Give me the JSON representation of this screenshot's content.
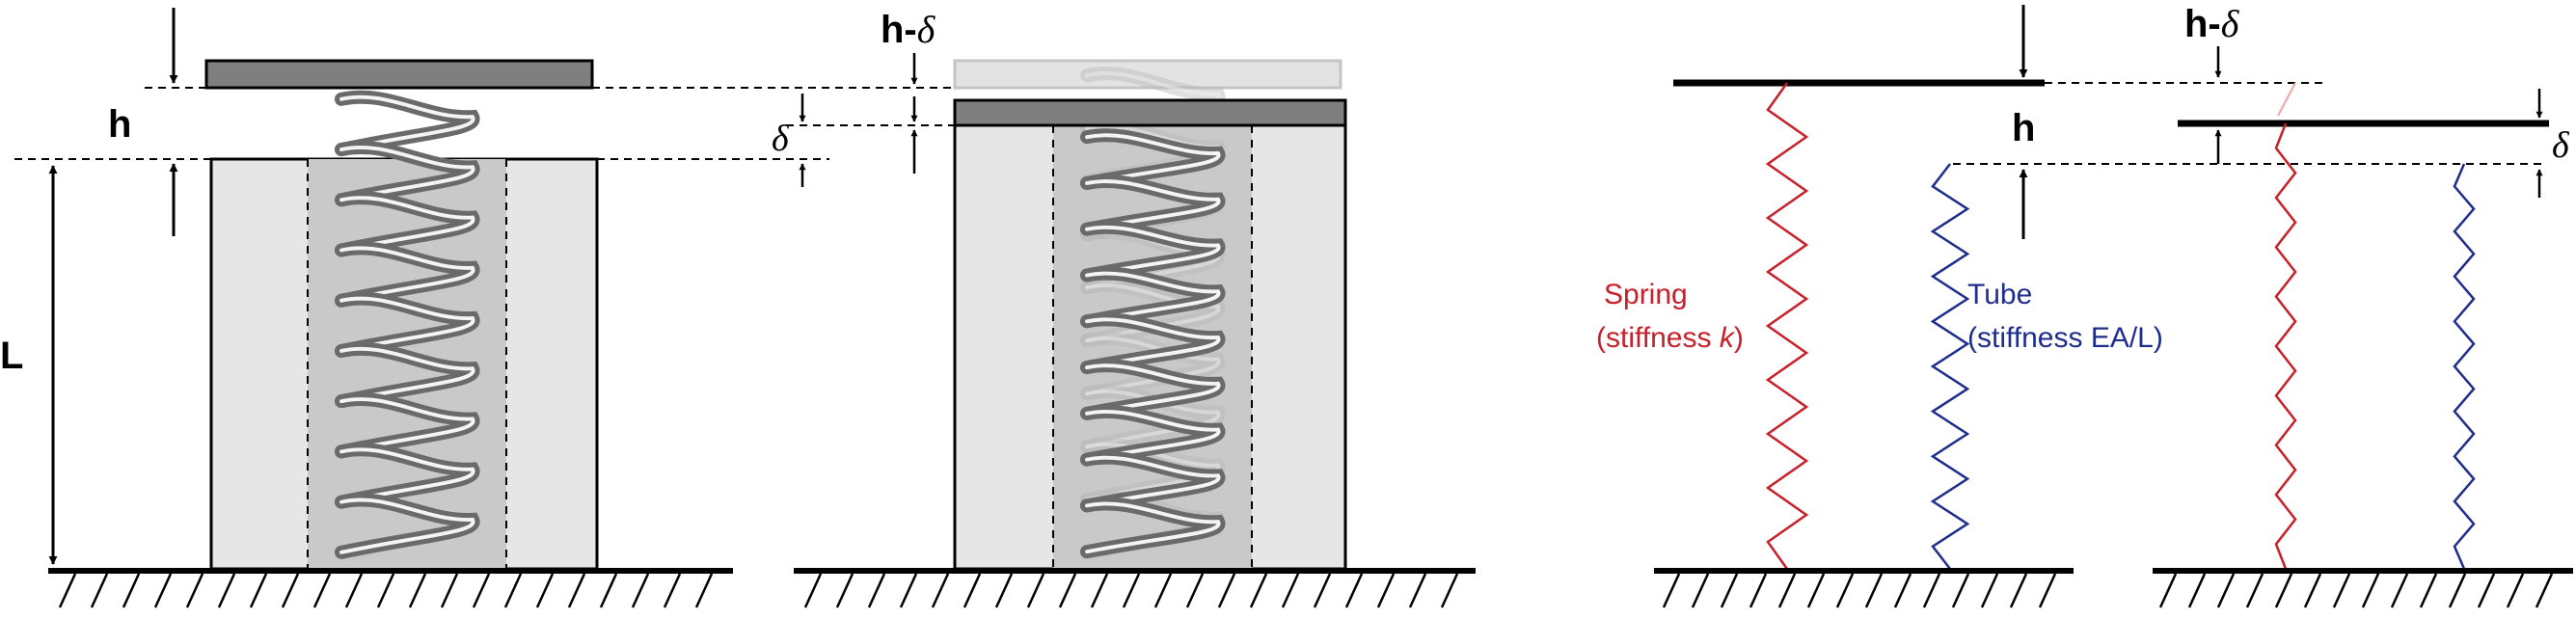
{
  "labels": {
    "h": "h",
    "L": "L",
    "h_minus_prefix": "h-",
    "delta": "δ"
  },
  "spring_label": {
    "line1": "Spring",
    "line2_prefix": "(stiffness ",
    "line2_var": "k",
    "line2_suffix": ")"
  },
  "tube_label": {
    "line1": "Tube",
    "line2": "(stiffness EA/L)"
  },
  "colors": {
    "spring": "#c8202a",
    "tube": "#1f2e8c",
    "tube_fill": "#e6e6e6",
    "plate": "#7f7f7f",
    "plate_ghost": "#e3e3e3",
    "coil_shadow": "#b9b9b9",
    "coil": "#6a6a6a"
  }
}
